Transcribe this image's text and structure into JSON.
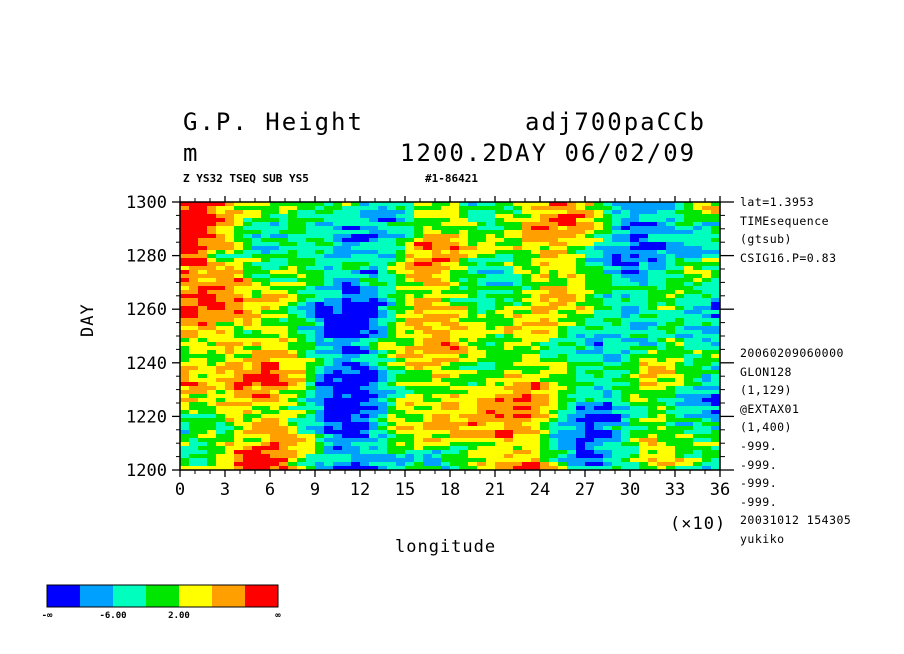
{
  "header": {
    "title_left": "G.P. Height",
    "title_right": "adj700paCCb",
    "unit": "m",
    "time_info": "1200.2DAY 06/02/09",
    "subtitle_left": "Z YS32 TSEQ SUB YS5",
    "subtitle_right": "#1-86421"
  },
  "side_info": {
    "top": [
      "lat=1.3953",
      "TIMEsequence",
      "(gtsub)",
      "CSIG16.P=0.83"
    ],
    "bottom": [
      "20060209060000",
      "GLON128",
      "(1,129)",
      "@EXTAX01",
      "(1,400)",
      "-999.",
      "-999.",
      "-999.",
      "-999.",
      "20031012 154305",
      "yukiko"
    ]
  },
  "colorbar": {
    "colors": [
      "#0000ff",
      "#00a0ff",
      "#00ffbe",
      "#00e600",
      "#ffff00",
      "#ffa000",
      "#ff0000"
    ],
    "labels": [
      "-∞",
      "-6.00",
      "2.00",
      "∞"
    ]
  },
  "chart_data": {
    "type": "heatmap",
    "xlabel": "longitude",
    "ylabel": "DAY",
    "x_multiplier_label": "(×10)",
    "xlim": [
      0,
      36
    ],
    "ylim": [
      1200,
      1300
    ],
    "x_ticks": [
      0,
      3,
      6,
      9,
      12,
      15,
      18,
      21,
      24,
      27,
      30,
      33,
      36
    ],
    "y_ticks": [
      1200,
      1220,
      1240,
      1260,
      1280,
      1300
    ],
    "x_tick_labels": [
      "0",
      "3",
      "6",
      "9",
      "12",
      "15",
      "18",
      "21",
      "24",
      "27",
      "30",
      "33",
      "36"
    ],
    "y_tick_labels": [
      "1200",
      "1220",
      "1240",
      "1260",
      "1280",
      "1300"
    ],
    "colors": [
      "#0000ff",
      "#00a0ff",
      "#00ffbe",
      "#00e600",
      "#ffff00",
      "#ffa000",
      "#ff0000"
    ]
  }
}
